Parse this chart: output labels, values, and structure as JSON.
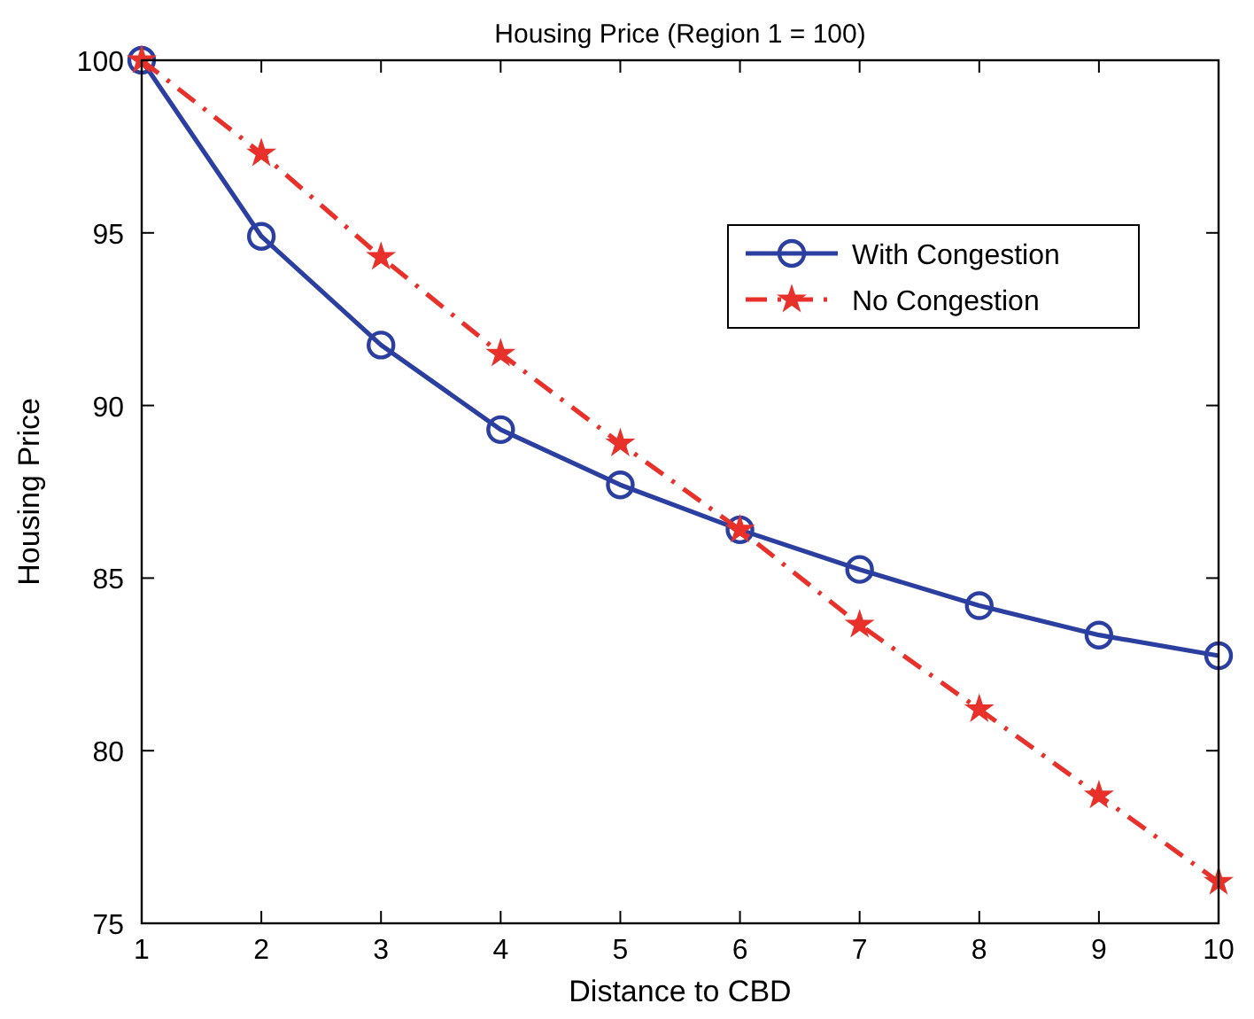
{
  "chart_data": {
    "type": "line",
    "title": "Housing Price (Region 1 = 100)",
    "xlabel": "Distance to CBD",
    "ylabel": "Housing Price",
    "x": [
      1,
      2,
      3,
      4,
      5,
      6,
      7,
      8,
      9,
      10
    ],
    "series": [
      {
        "name": "With Congestion",
        "color": "#2b3fa0",
        "marker": "circle",
        "line_style": "solid",
        "values": [
          100,
          94.9,
          91.75,
          89.3,
          87.7,
          86.4,
          85.25,
          84.2,
          83.35,
          82.75
        ]
      },
      {
        "name": "No Congestion",
        "color": "#e8312a",
        "marker": "star",
        "line_style": "dashed",
        "values": [
          100,
          97.3,
          94.3,
          91.5,
          88.9,
          86.4,
          83.65,
          81.2,
          78.7,
          76.2
        ]
      }
    ],
    "xlim": [
      1,
      10
    ],
    "xticks": [
      1,
      2,
      3,
      4,
      5,
      6,
      7,
      8,
      9,
      10
    ],
    "ylim": [
      75,
      100
    ],
    "yticks": [
      75,
      80,
      85,
      90,
      95,
      100
    ],
    "grid": false,
    "legend": "top right"
  }
}
